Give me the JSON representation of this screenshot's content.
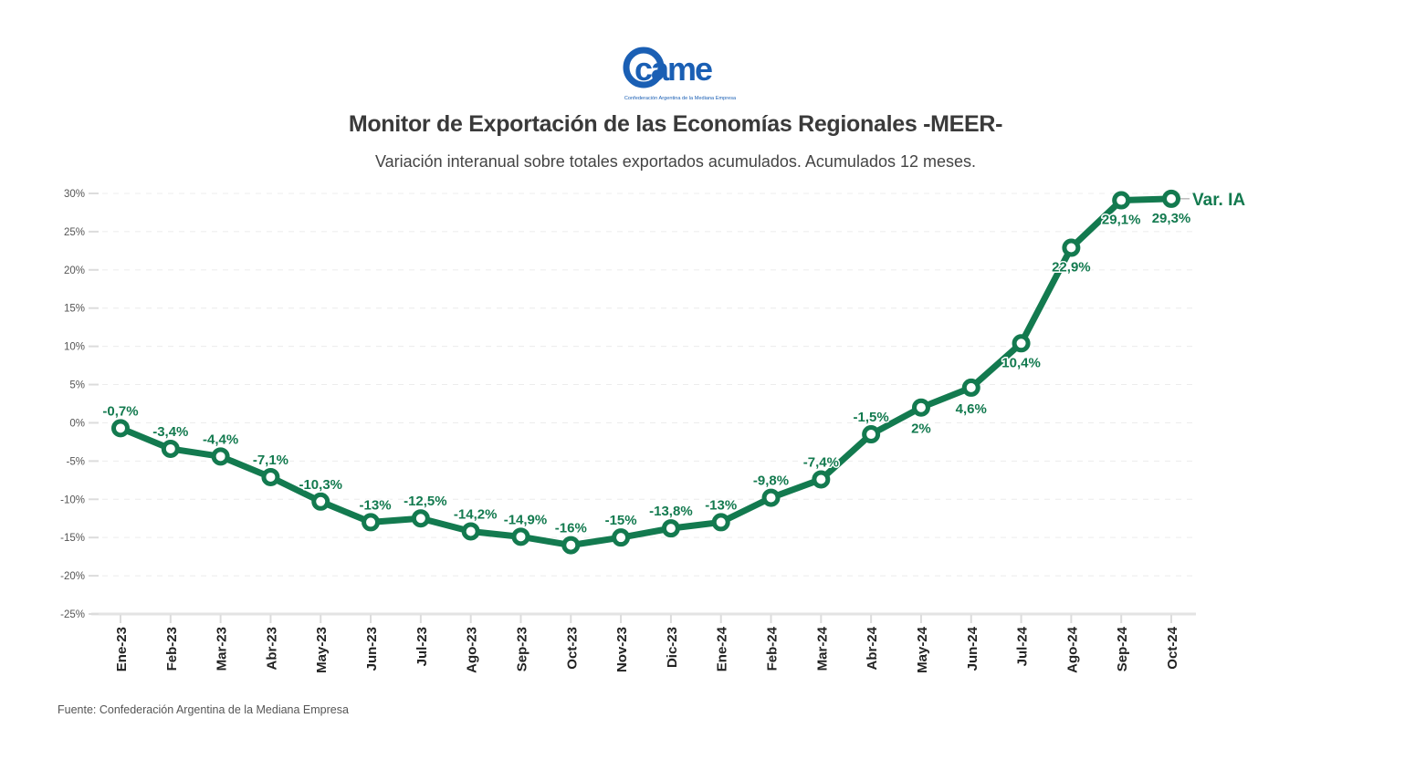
{
  "header": {
    "logo_text": "came",
    "logo_caption": "Confederación Argentina de la Mediana Empresa",
    "title": "Monitor de Exportación de las Economías Regionales -MEER-",
    "subtitle": "Variación interanual sobre totales exportados acumulados. Acumulados 12 meses."
  },
  "footer": {
    "source": "Fuente: Confederación Argentina de la Mediana Empresa"
  },
  "colors": {
    "series": "#137a4f",
    "logo": "#1a5fb4",
    "grid": "#e6e6e6",
    "text": "#3a3a3a"
  },
  "chart_data": {
    "type": "line",
    "title": "Monitor de Exportación de las Economías Regionales -MEER-",
    "subtitle": "Variación interanual sobre totales exportados acumulados. Acumulados 12 meses.",
    "xlabel": "",
    "ylabel": "",
    "ylim": [
      -25,
      30
    ],
    "yticks": [
      30,
      25,
      20,
      15,
      10,
      5,
      0,
      -5,
      -10,
      -15,
      -20,
      -25
    ],
    "ytick_labels": [
      "30%",
      "25%",
      "20%",
      "15%",
      "10%",
      "5%",
      "0%",
      "-5%",
      "-10%",
      "-15%",
      "-20%",
      "-25%"
    ],
    "grid": true,
    "legend": "end-of-line label",
    "categories": [
      "Ene-23",
      "Feb-23",
      "Mar-23",
      "Abr-23",
      "May-23",
      "Jun-23",
      "Jul-23",
      "Ago-23",
      "Sep-23",
      "Oct-23",
      "Nov-23",
      "Dic-23",
      "Ene-24",
      "Feb-24",
      "Mar-24",
      "Abr-24",
      "May-24",
      "Jun-24",
      "Jul-24",
      "Ago-24",
      "Sep-24",
      "Oct-24"
    ],
    "series": [
      {
        "name": "Var. IA",
        "values": [
          -0.7,
          -3.4,
          -4.4,
          -7.1,
          -10.3,
          -13,
          -12.5,
          -14.2,
          -14.9,
          -16,
          -15,
          -13.8,
          -13,
          -9.8,
          -7.4,
          -1.5,
          2,
          4.6,
          10.4,
          22.9,
          29.1,
          29.3
        ],
        "labels": [
          "-0,7%",
          "-3,4%",
          "-4,4%",
          "-7,1%",
          "-10,3%",
          "-13%",
          "-12,5%",
          "-14,2%",
          "-14,9%",
          "-16%",
          "-15%",
          "-13,8%",
          "-13%",
          "-9,8%",
          "-7,4%",
          "-1,5%",
          "2%",
          "4,6%",
          "10,4%",
          "22,9%",
          "29,1%",
          "29,3%"
        ]
      }
    ]
  }
}
